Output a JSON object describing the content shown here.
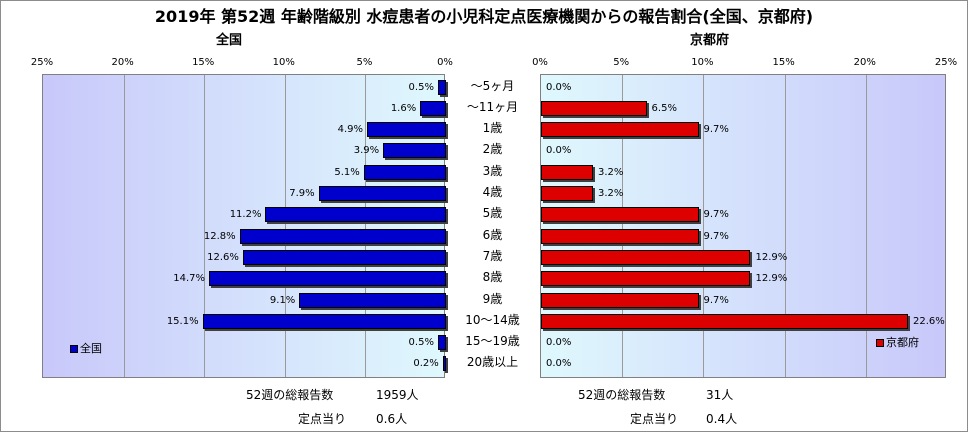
{
  "title": "2019年 第52週 年齢階級別 水痘患者の小児科定点医療機関からの報告割合(全国、京都府)",
  "categories": [
    "～5ヶ月",
    "～11ヶ月",
    "1歳",
    "2歳",
    "3歳",
    "4歳",
    "5歳",
    "6歳",
    "7歳",
    "8歳",
    "9歳",
    "10～14歳",
    "15～19歳",
    "20歳以上"
  ],
  "tick_labels": [
    "0%",
    "5%",
    "10%",
    "15%",
    "20%",
    "25%"
  ],
  "chart_data": [
    {
      "type": "bar",
      "orientation": "horizontal",
      "direction": "right-to-left",
      "title": "全国",
      "categories": [
        "～5ヶ月",
        "～11ヶ月",
        "1歳",
        "2歳",
        "3歳",
        "4歳",
        "5歳",
        "6歳",
        "7歳",
        "8歳",
        "9歳",
        "10～14歳",
        "15～19歳",
        "20歳以上"
      ],
      "series": [
        {
          "name": "全国",
          "values": [
            0.5,
            1.6,
            4.9,
            3.9,
            5.1,
            7.9,
            11.2,
            12.8,
            12.6,
            14.7,
            9.1,
            15.1,
            0.5,
            0.2
          ],
          "labels": [
            "0.5%",
            "1.6%",
            "4.9%",
            "3.9%",
            "5.1%",
            "7.9%",
            "11.2%",
            "12.8%",
            "12.6%",
            "14.7%",
            "9.1%",
            "15.1%",
            "0.5%",
            "0.2%"
          ]
        }
      ],
      "xlim": [
        0,
        25
      ],
      "grid": true,
      "legend": "bottom-left",
      "color": "#0000cc"
    },
    {
      "type": "bar",
      "orientation": "horizontal",
      "direction": "left-to-right",
      "title": "京都府",
      "categories": [
        "～5ヶ月",
        "～11ヶ月",
        "1歳",
        "2歳",
        "3歳",
        "4歳",
        "5歳",
        "6歳",
        "7歳",
        "8歳",
        "9歳",
        "10～14歳",
        "15～19歳",
        "20歳以上"
      ],
      "series": [
        {
          "name": "京都府",
          "values": [
            0.0,
            6.5,
            9.7,
            0.0,
            3.2,
            3.2,
            9.7,
            9.7,
            12.9,
            12.9,
            9.7,
            22.6,
            0.0,
            0.0
          ],
          "labels": [
            "0.0%",
            "6.5%",
            "9.7%",
            "0.0%",
            "3.2%",
            "3.2%",
            "9.7%",
            "9.7%",
            "12.9%",
            "12.9%",
            "9.7%",
            "22.6%",
            "0.0%",
            "0.0%"
          ]
        }
      ],
      "xlim": [
        0,
        25
      ],
      "grid": true,
      "legend": "bottom-right",
      "color": "#dd0000"
    }
  ],
  "stats": {
    "national": {
      "total_label": "52週の総報告数",
      "total_value": "1959人",
      "per_label": "定点当り",
      "per_value": "0.6人"
    },
    "kyoto": {
      "total_label": "52週の総報告数",
      "total_value": "31人",
      "per_label": "定点当り",
      "per_value": "0.4人"
    }
  }
}
